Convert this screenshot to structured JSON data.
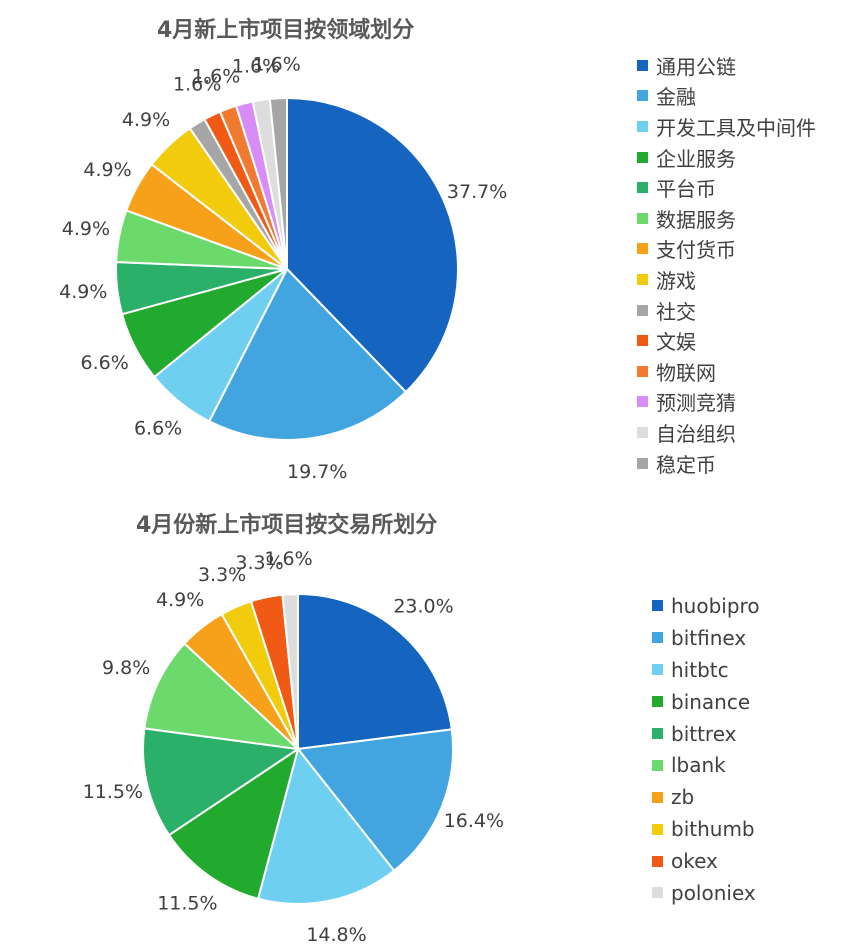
{
  "chart_data": [
    {
      "type": "pie",
      "title": "4月新上市项目按领域划分",
      "categories": [
        "通用公链",
        "金融",
        "开发工具及中间件",
        "企业服务",
        "平台币",
        "数据服务",
        "支付货币",
        "游戏",
        "社交",
        "文娱",
        "物联网",
        "预测竞猜",
        "自治组织",
        "稳定币"
      ],
      "values": [
        37.7,
        19.7,
        6.6,
        6.6,
        4.9,
        4.9,
        4.9,
        4.9,
        1.6,
        1.6,
        1.6,
        1.6,
        1.6,
        1.6
      ],
      "value_labels": [
        "37.7%",
        "19.7%",
        "6.6%",
        "6.6%",
        "4.9%",
        "4.9%",
        "4.9%",
        "4.9%",
        "",
        "1.6%",
        "1.6%",
        "",
        "1.6%",
        "1.6%"
      ],
      "colors": [
        "#1565C0",
        "#42A5E0",
        "#6ECFF0",
        "#22AA2E",
        "#2BB069",
        "#6BD96B",
        "#F7A11A",
        "#F2CC0C",
        "#A6A6A6",
        "#F05A14",
        "#F07A2F",
        "#D88CF5",
        "#DDDDDD",
        "#A6A6A6"
      ],
      "legend_position": "right"
    },
    {
      "type": "pie",
      "title": "4月份新上市项目按交易所划分",
      "categories": [
        "huobipro",
        "bitfinex",
        "hitbtc",
        "binance",
        "bittrex",
        "lbank",
        "zb",
        "bithumb",
        "okex",
        "poloniex"
      ],
      "values": [
        23.0,
        16.4,
        14.8,
        11.5,
        11.5,
        9.8,
        4.9,
        3.3,
        3.3,
        1.6
      ],
      "value_labels": [
        "23.0%",
        "16.4%",
        "14.8%",
        "11.5%",
        "11.5%",
        "9.8%",
        "4.9%",
        "3.3%",
        "3.3%",
        "1.6%"
      ],
      "colors": [
        "#1565C0",
        "#42A5E0",
        "#6ECFF0",
        "#22AA2E",
        "#2BB069",
        "#6BD96B",
        "#F7A11A",
        "#F2CC0C",
        "#F05A14",
        "#DDDDDD"
      ],
      "legend_position": "right"
    }
  ]
}
